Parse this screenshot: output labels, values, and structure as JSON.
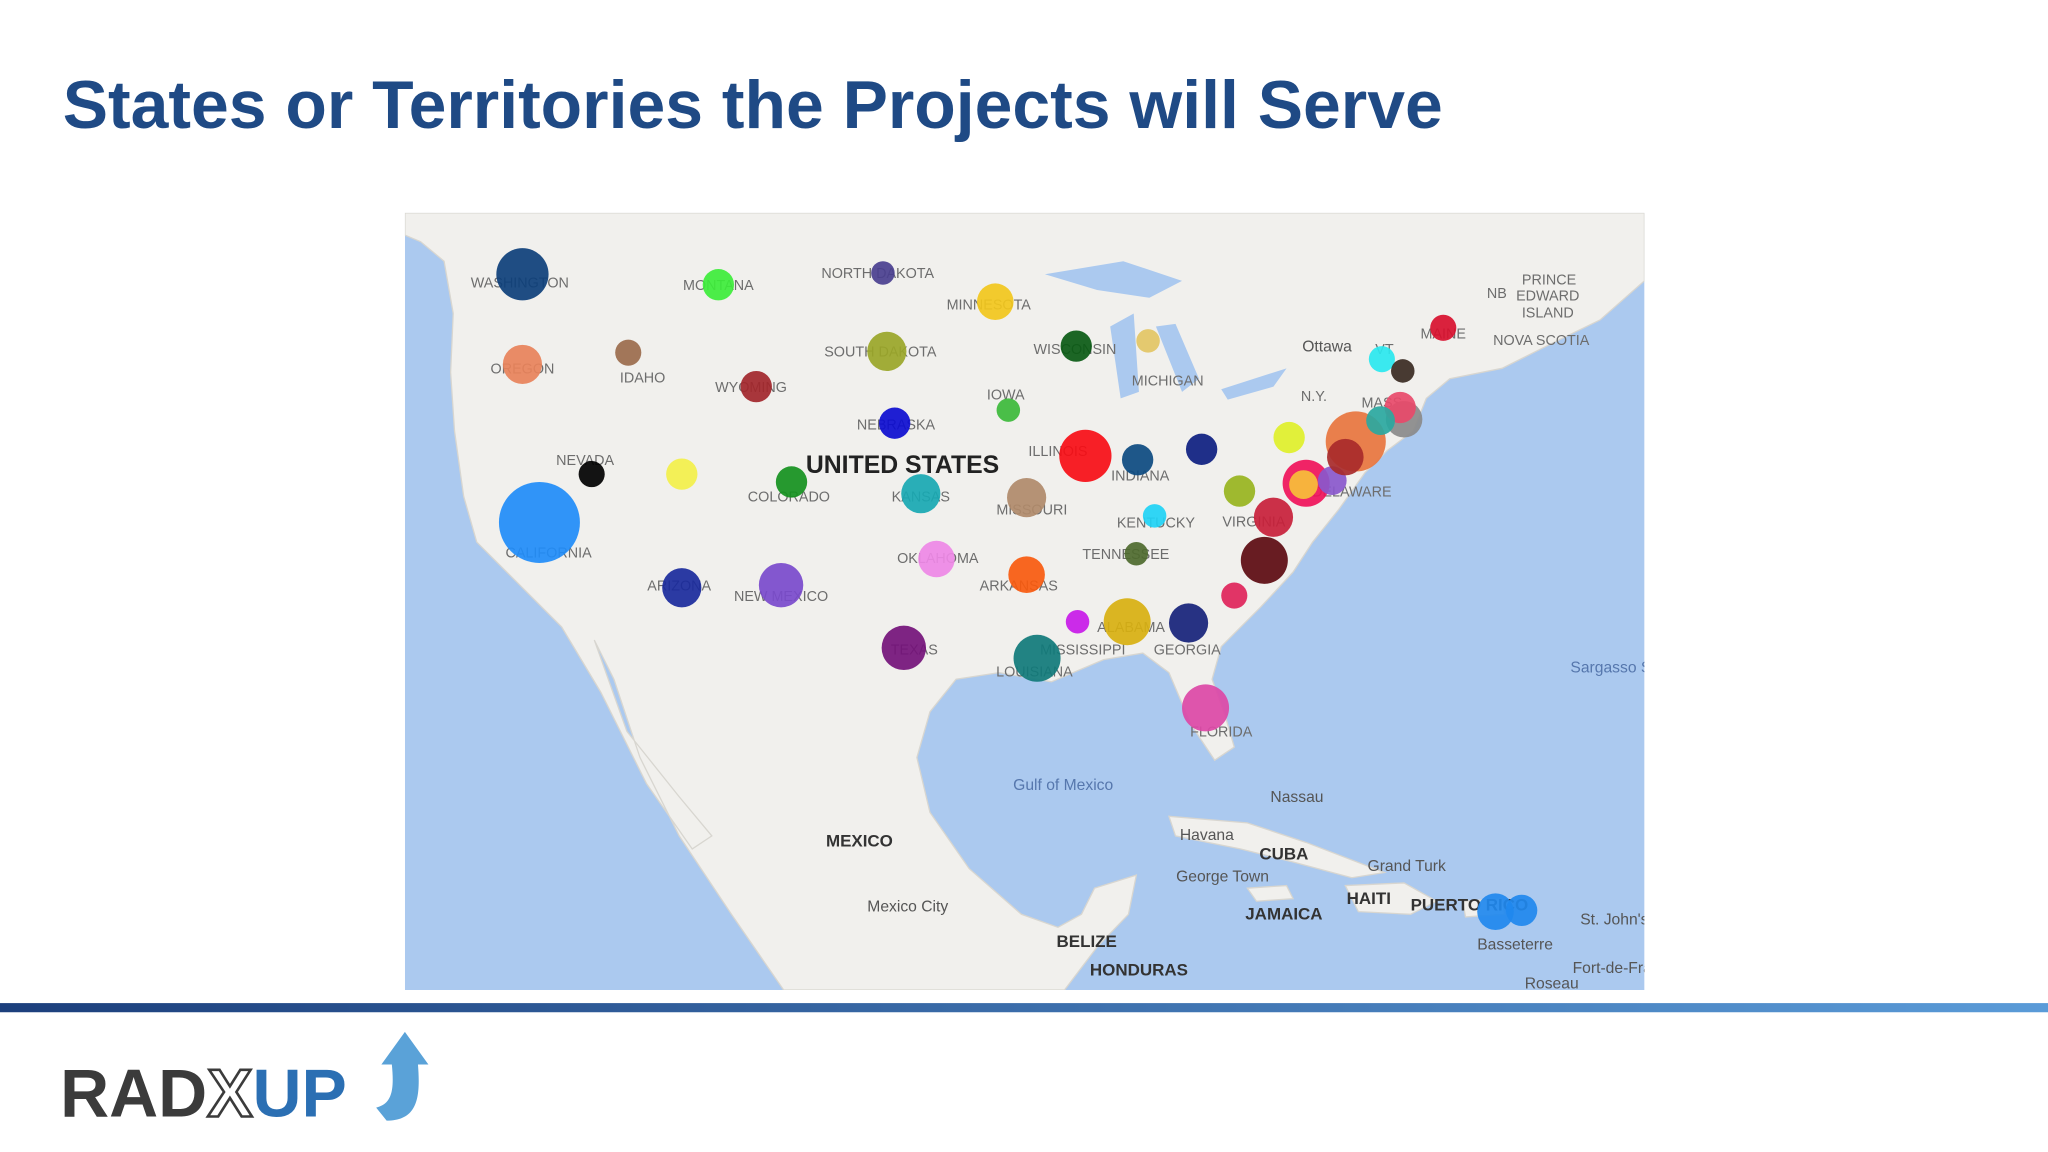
{
  "title": "States or Territories the Projects will Serve",
  "map": {
    "labels": [
      "WASHINGTON",
      "MONTANA",
      "NORTH DAKOTA",
      "MINNESOTA",
      "OREGON",
      "IDAHO",
      "WYOMING",
      "SOUTH DAKOTA",
      "WISCONSIN",
      "MICHIGAN",
      "IOWA",
      "NEBRASKA",
      "NEVADA",
      "UNITED STATES",
      "COLORADO",
      "KANSAS",
      "MISSOURI",
      "ILLINOIS",
      "INDIANA",
      "KENTUCKY",
      "VIRGINIA",
      "TENNESSEE",
      "CALIFORNIA",
      "ARIZONA",
      "NEW MEXICO",
      "OKLAHOMA",
      "ARKANSAS",
      "MISSISSIPPI",
      "ALABAMA",
      "GEORGIA",
      "TEXAS",
      "LOUISIANA",
      "FLORIDA",
      "DELAWARE",
      "MAINE",
      "MASS",
      "VT",
      "N.Y.",
      "Ottawa",
      "NB",
      "PRINCE",
      "EDWARD",
      "ISLAND",
      "NOVA SCOTIA",
      "Sargasso Sea",
      "Gulf of Mexico",
      "MEXICO",
      "Mexico City",
      "Nassau",
      "Havana",
      "CUBA",
      "George Town",
      "Grand Turk",
      "JAMAICA",
      "HAITI",
      "PUERTO RICO",
      "Basseterre",
      "St. John's",
      "Fort-de-France",
      "Roseau",
      "BELIZE",
      "HONDURAS"
    ]
  },
  "logo": {
    "parts": [
      "RAD",
      "X",
      "UP"
    ]
  }
}
